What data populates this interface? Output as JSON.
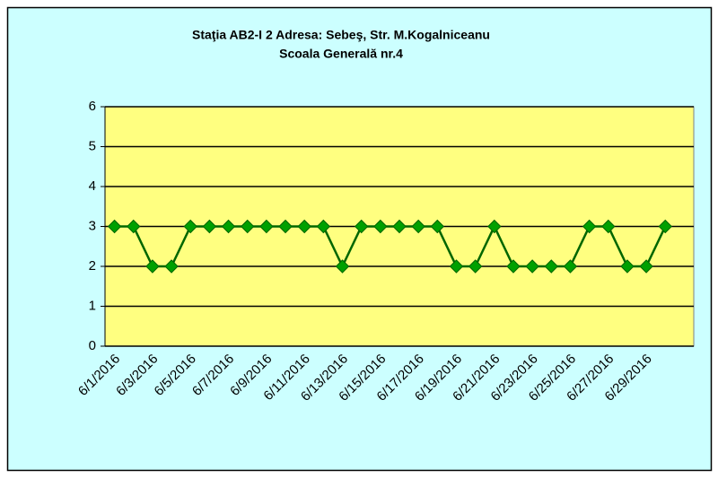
{
  "chart_data": {
    "type": "line",
    "title": [
      "Staţia AB2-I 2   Adresa: Sebeş, Str. M.Kogalniceanu",
      "Scoala Generală nr.4"
    ],
    "categories": [
      "6/1/2016",
      null,
      "6/3/2016",
      null,
      "6/5/2016",
      null,
      "6/7/2016",
      null,
      "6/9/2016",
      null,
      "6/11/2016",
      null,
      "6/13/2016",
      null,
      "6/15/2016",
      null,
      "6/17/2016",
      null,
      "6/19/2016",
      null,
      "6/21/2016",
      null,
      "6/23/2016",
      null,
      "6/25/2016",
      null,
      "6/27/2016",
      null,
      "6/29/2016",
      null,
      null
    ],
    "series": [
      {
        "color": "#006600",
        "marker_color": "#00a000",
        "values": [
          3,
          3,
          2,
          2,
          3,
          3,
          3,
          3,
          3,
          3,
          3,
          3,
          2,
          3,
          3,
          3,
          3,
          3,
          2,
          2,
          3,
          2,
          2,
          2,
          2,
          3,
          3,
          2,
          2,
          3,
          null
        ]
      }
    ],
    "ylim": [
      0,
      6
    ],
    "yticks": [
      0,
      1,
      2,
      3,
      4,
      5,
      6
    ],
    "grid": true,
    "background": "#ccffff",
    "plot_background": "#ffff80"
  }
}
